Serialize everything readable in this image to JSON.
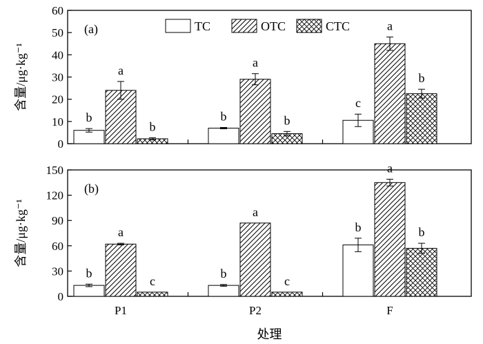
{
  "chart_data": [
    {
      "type": "bar",
      "panel_label": "(a)",
      "categories": [
        "P1",
        "P2",
        "F"
      ],
      "ylabel": "含量/μg·kg⁻¹",
      "ylim": [
        0,
        60
      ],
      "yticks": [
        0,
        10,
        20,
        30,
        40,
        50,
        60
      ],
      "legend": "top-center",
      "series": [
        {
          "name": "TC",
          "pattern": "none",
          "values": [
            6,
            7,
            10.5
          ],
          "errors": [
            0.8,
            0.3,
            2.8
          ],
          "letters": [
            "b",
            "b",
            "c"
          ]
        },
        {
          "name": "OTC",
          "pattern": "diagonal",
          "values": [
            24,
            29,
            45
          ],
          "errors": [
            4,
            2.5,
            3
          ],
          "letters": [
            "a",
            "a",
            "a"
          ]
        },
        {
          "name": "CTC",
          "pattern": "crosshatch",
          "values": [
            2.2,
            4.5,
            22.5
          ],
          "errors": [
            0.5,
            1,
            2
          ],
          "letters": [
            "b",
            "b",
            "b"
          ]
        }
      ]
    },
    {
      "type": "bar",
      "panel_label": "(b)",
      "categories": [
        "P1",
        "P2",
        "F"
      ],
      "ylabel": "含量/μg·kg⁻¹",
      "xlabel": "处理",
      "ylim": [
        0,
        150
      ],
      "yticks": [
        0,
        30,
        60,
        90,
        120,
        150
      ],
      "series": [
        {
          "name": "TC",
          "pattern": "none",
          "values": [
            13,
            13,
            61
          ],
          "errors": [
            1.5,
            1,
            8
          ],
          "letters": [
            "b",
            "b",
            "b"
          ]
        },
        {
          "name": "OTC",
          "pattern": "diagonal",
          "values": [
            62,
            87,
            135
          ],
          "errors": [
            1,
            0,
            4
          ],
          "letters": [
            "a",
            "a",
            "a"
          ]
        },
        {
          "name": "CTC",
          "pattern": "crosshatch",
          "values": [
            5,
            5,
            57
          ],
          "errors": [
            0,
            0,
            6
          ],
          "letters": [
            "c",
            "c",
            "b"
          ]
        }
      ]
    }
  ]
}
